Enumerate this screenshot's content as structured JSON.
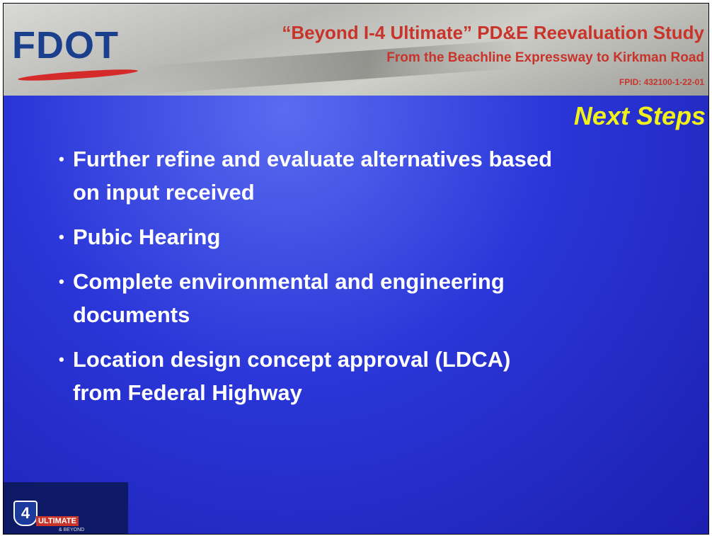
{
  "header": {
    "logo": "FDOT",
    "title": "“Beyond I-4 Ultimate” PD&E Reevaluation Study",
    "subtitle": "From the Beachline Expressway to Kirkman Road",
    "fpid": "FPID: 432100-1-22-01"
  },
  "slide": {
    "heading": "Next Steps",
    "bullets": [
      "Further refine and evaluate alternatives based on input received",
      "Pubic Hearing",
      "Complete environmental and engineering documents",
      "Location design concept approval (LDCA) from Federal Highway"
    ]
  },
  "footer_logo": {
    "shield": "4",
    "name": "ULTIMATE",
    "tagline": "& BEYOND"
  }
}
